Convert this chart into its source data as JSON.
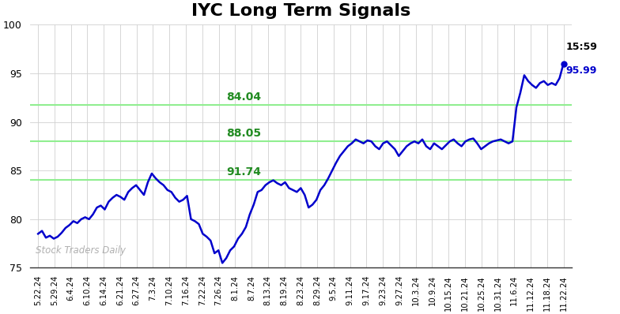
{
  "title": "IYC Long Term Signals",
  "title_fontsize": 16,
  "line_color": "#0000cc",
  "background_color": "#ffffff",
  "grid_color": "#d0d0d0",
  "hlines": [
    84.04,
    88.05,
    91.74
  ],
  "hline_color": "#90ee90",
  "hline_labels": [
    "91.74",
    "88.05",
    "84.04"
  ],
  "hline_label_color": "#228B22",
  "ylim": [
    75,
    100
  ],
  "yticks": [
    75,
    80,
    85,
    90,
    95,
    100
  ],
  "watermark": "Stock Traders Daily",
  "watermark_color": "#b0b0b0",
  "annotation_time": "15:59",
  "annotation_value": "95.99",
  "annotation_color_time": "#000000",
  "annotation_color_value": "#0000cc",
  "x_labels": [
    "5.22.24",
    "5.29.24",
    "6.4.24",
    "6.10.24",
    "6.14.24",
    "6.21.24",
    "6.27.24",
    "7.3.24",
    "7.10.24",
    "7.16.24",
    "7.22.24",
    "7.26.24",
    "8.1.24",
    "8.7.24",
    "8.13.24",
    "8.19.24",
    "8.23.24",
    "8.29.24",
    "9.5.24",
    "9.11.24",
    "9.17.24",
    "9.23.24",
    "9.27.24",
    "10.3.24",
    "10.9.24",
    "10.15.24",
    "10.21.24",
    "10.25.24",
    "10.31.24",
    "11.6.24",
    "11.12.24",
    "11.18.24",
    "11.22.24"
  ],
  "y_values": [
    78.5,
    78.8,
    78.1,
    78.3,
    78.0,
    78.2,
    78.6,
    79.1,
    79.4,
    79.8,
    79.6,
    80.0,
    80.2,
    80.0,
    80.5,
    81.2,
    81.4,
    81.0,
    81.8,
    82.2,
    82.5,
    82.3,
    82.0,
    82.8,
    83.2,
    83.5,
    83.0,
    82.5,
    83.8,
    84.7,
    84.2,
    83.8,
    83.5,
    83.0,
    82.8,
    82.2,
    81.8,
    82.0,
    82.4,
    80.0,
    79.8,
    79.5,
    78.5,
    78.2,
    77.8,
    76.5,
    76.8,
    75.5,
    76.0,
    76.8,
    77.2,
    78.0,
    78.5,
    79.2,
    80.5,
    81.5,
    82.8,
    83.0,
    83.5,
    83.8,
    84.0,
    83.7,
    83.5,
    83.8,
    83.2,
    83.0,
    82.8,
    83.2,
    82.5,
    81.2,
    81.5,
    82.0,
    83.0,
    83.5,
    84.2,
    85.0,
    85.8,
    86.5,
    87.0,
    87.5,
    87.8,
    88.2,
    88.0,
    87.8,
    88.1,
    88.0,
    87.5,
    87.2,
    87.8,
    88.0,
    87.6,
    87.2,
    86.5,
    87.0,
    87.5,
    87.8,
    88.0,
    87.8,
    88.2,
    87.5,
    87.2,
    87.8,
    87.5,
    87.2,
    87.6,
    88.0,
    88.2,
    87.8,
    87.5,
    88.0,
    88.2,
    88.3,
    87.8,
    87.2,
    87.5,
    87.8,
    88.0,
    88.1,
    88.2,
    88.0,
    87.8,
    88.0,
    91.5,
    93.0,
    94.8,
    94.2,
    93.8,
    93.5,
    94.0,
    94.2,
    93.8,
    94.0,
    93.8,
    94.5,
    95.99
  ]
}
